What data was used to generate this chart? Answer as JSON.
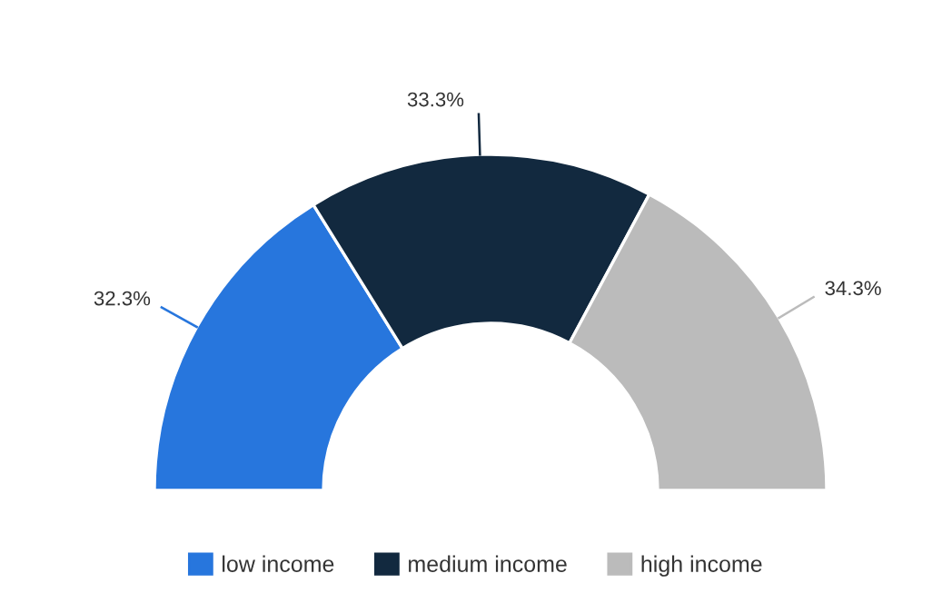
{
  "chart_data": {
    "type": "donut",
    "categories": [
      "low income",
      "medium income",
      "high income"
    ],
    "values": [
      32.3,
      33.3,
      34.3
    ],
    "value_labels": [
      "32.3%",
      "33.3%",
      "34.3%"
    ],
    "colors": [
      "#2776dd",
      "#12293f",
      "#bbbbbb"
    ],
    "legend": "bottom"
  }
}
